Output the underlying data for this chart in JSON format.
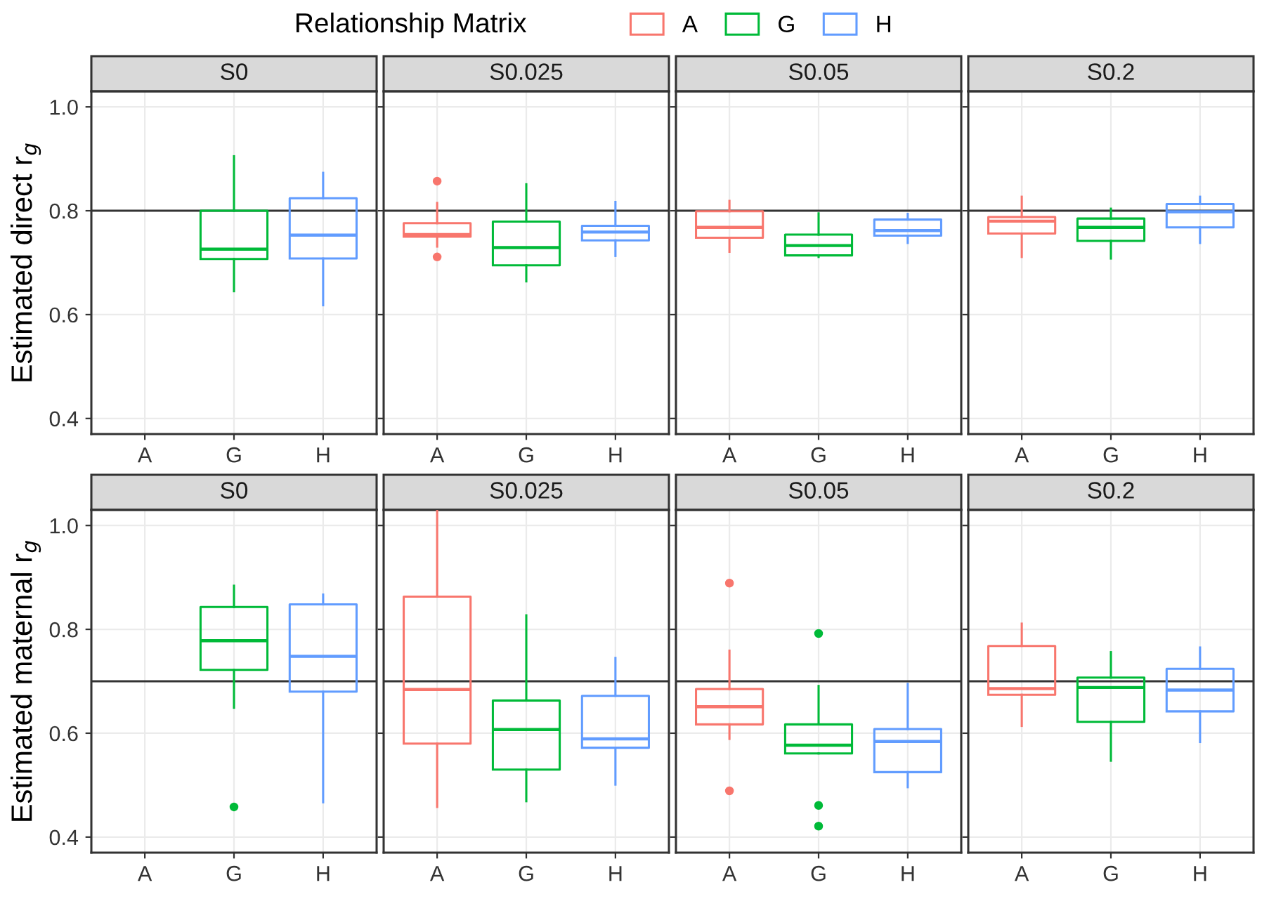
{
  "chart_data": [
    {
      "type": "box",
      "title": "S0",
      "ylabel": "Estimated direct r$_{g}$",
      "legend_title": "Relationship Matrix",
      "legend": "top",
      "categories": [
        "A",
        "G",
        "H"
      ],
      "ylim": [
        0.37,
        1.03
      ],
      "yticks": [
        0.4,
        0.6,
        0.8,
        {
          "value": 1.0,
          "label": "1.0"
        }
      ],
      "grid": true,
      "ref_lines": [
        {
          "axis": "y",
          "value": 0.8,
          "color": "#333333"
        }
      ],
      "series": [
        {
          "name": "A",
          "color": "#f8766d",
          "boxes": [
            null,
            null,
            null
          ]
        },
        {
          "name": "G",
          "color": "#00ba38",
          "boxes": [
            null,
            {
              "low": 0.645,
              "q1": 0.707,
              "median": 0.726,
              "q3": 0.8,
              "high": 0.905
            },
            null
          ]
        },
        {
          "name": "H",
          "color": "#619cff",
          "boxes": [
            null,
            null,
            {
              "low": 0.618,
              "q1": 0.708,
              "median": 0.753,
              "q3": 0.824,
              "high": 0.873
            }
          ]
        }
      ]
    },
    {
      "type": "box",
      "title": "S0.025",
      "categories": [
        "A",
        "G",
        "H"
      ],
      "ylim": [
        0.37,
        1.03
      ],
      "yticks": [
        0.4,
        0.6,
        0.8,
        1.0
      ],
      "tick_labels": "x",
      "grid": true,
      "ref_lines": [
        {
          "axis": "y",
          "value": 0.8,
          "color": "#333333"
        }
      ],
      "series": [
        {
          "color": "#f8766d",
          "boxes": [
            {
              "low": 0.731,
              "q1": 0.75,
              "median": 0.754,
              "q3": 0.776,
              "high": 0.815,
              "outliers": [
                0.857,
                0.711
              ]
            },
            null,
            null
          ]
        },
        {
          "color": "#00ba38",
          "boxes": [
            null,
            {
              "low": 0.664,
              "q1": 0.695,
              "median": 0.729,
              "q3": 0.779,
              "high": 0.851
            },
            null
          ]
        },
        {
          "color": "#619cff",
          "boxes": [
            null,
            null,
            {
              "low": 0.713,
              "q1": 0.743,
              "median": 0.759,
              "q3": 0.771,
              "high": 0.817
            }
          ]
        }
      ]
    },
    {
      "type": "box",
      "title": "S0.05",
      "categories": [
        "A",
        "G",
        "H"
      ],
      "ylim": [
        0.37,
        1.03
      ],
      "yticks": [
        0.4,
        0.6,
        0.8,
        1.0
      ],
      "tick_labels": "x",
      "grid": true,
      "ref_lines": [
        {
          "axis": "y",
          "value": 0.8,
          "color": "#333333"
        }
      ],
      "series": [
        {
          "color": "#f8766d",
          "boxes": [
            {
              "low": 0.721,
              "q1": 0.748,
              "median": 0.768,
              "q3": 0.799,
              "high": 0.819
            },
            null,
            null
          ]
        },
        {
          "color": "#00ba38",
          "boxes": [
            null,
            {
              "low": 0.711,
              "q1": 0.714,
              "median": 0.733,
              "q3": 0.754,
              "high": 0.795
            },
            null
          ]
        },
        {
          "color": "#619cff",
          "boxes": [
            null,
            null,
            {
              "low": 0.738,
              "q1": 0.752,
              "median": 0.762,
              "q3": 0.783,
              "high": 0.794
            }
          ]
        }
      ]
    },
    {
      "type": "box",
      "title": "S0.2",
      "categories": [
        "A",
        "G",
        "H"
      ],
      "ylim": [
        0.37,
        1.03
      ],
      "yticks": [
        0.4,
        0.6,
        0.8,
        1.0
      ],
      "tick_labels": "x",
      "grid": true,
      "ref_lines": [
        {
          "axis": "y",
          "value": 0.8,
          "color": "#333333"
        }
      ],
      "series": [
        {
          "color": "#f8766d",
          "boxes": [
            {
              "low": 0.711,
              "q1": 0.756,
              "median": 0.78,
              "q3": 0.788,
              "high": 0.827
            },
            null,
            null
          ]
        },
        {
          "color": "#00ba38",
          "boxes": [
            null,
            {
              "low": 0.708,
              "q1": 0.742,
              "median": 0.768,
              "q3": 0.785,
              "high": 0.804
            },
            null
          ]
        },
        {
          "color": "#619cff",
          "boxes": [
            null,
            null,
            {
              "low": 0.738,
              "q1": 0.768,
              "median": 0.798,
              "q3": 0.813,
              "high": 0.827
            }
          ]
        }
      ]
    },
    {
      "type": "box",
      "title": "S0",
      "ylabel": "Estimated maternal r$_{g}$",
      "categories": [
        "A",
        "G",
        "H"
      ],
      "ylim": [
        0.37,
        1.03
      ],
      "yticks": [
        0.4,
        0.6,
        0.8,
        {
          "value": 1.0,
          "label": "1.0"
        }
      ],
      "grid": true,
      "ref_lines": [
        {
          "axis": "y",
          "value": 0.7,
          "color": "#333333"
        }
      ],
      "series": [
        {
          "color": "#f8766d",
          "boxes": [
            null,
            null,
            null
          ]
        },
        {
          "color": "#00ba38",
          "boxes": [
            null,
            {
              "low": 0.649,
              "q1": 0.722,
              "median": 0.778,
              "q3": 0.843,
              "high": 0.884,
              "outliers": [
                0.458
              ]
            },
            null
          ]
        },
        {
          "color": "#619cff",
          "boxes": [
            null,
            null,
            {
              "low": 0.467,
              "q1": 0.68,
              "median": 0.748,
              "q3": 0.848,
              "high": 0.867
            }
          ]
        }
      ]
    },
    {
      "type": "box",
      "title": "S0.025",
      "categories": [
        "A",
        "G",
        "H"
      ],
      "ylim": [
        0.37,
        1.03
      ],
      "yticks": [
        0.4,
        0.6,
        0.8,
        1.0
      ],
      "tick_labels": "x",
      "grid": true,
      "ref_lines": [
        {
          "axis": "y",
          "value": 0.7,
          "color": "#333333"
        }
      ],
      "series": [
        {
          "color": "#f8766d",
          "boxes": [
            {
              "low": 0.458,
              "q1": 0.58,
              "median": 0.684,
              "q3": 0.863,
              "high": 1.03
            },
            null,
            null
          ]
        },
        {
          "color": "#00ba38",
          "boxes": [
            null,
            {
              "low": 0.469,
              "q1": 0.53,
              "median": 0.607,
              "q3": 0.663,
              "high": 0.827
            },
            null
          ]
        },
        {
          "color": "#619cff",
          "boxes": [
            null,
            null,
            {
              "low": 0.501,
              "q1": 0.572,
              "median": 0.589,
              "q3": 0.672,
              "high": 0.745
            }
          ]
        }
      ]
    },
    {
      "type": "box",
      "title": "S0.05",
      "categories": [
        "A",
        "G",
        "H"
      ],
      "ylim": [
        0.37,
        1.03
      ],
      "yticks": [
        0.4,
        0.6,
        0.8,
        1.0
      ],
      "tick_labels": "x",
      "grid": true,
      "ref_lines": [
        {
          "axis": "y",
          "value": 0.7,
          "color": "#333333"
        }
      ],
      "series": [
        {
          "color": "#f8766d",
          "boxes": [
            {
              "low": 0.589,
              "q1": 0.617,
              "median": 0.651,
              "q3": 0.685,
              "high": 0.759,
              "outliers": [
                0.889,
                0.489
              ]
            },
            null,
            null
          ]
        },
        {
          "color": "#00ba38",
          "boxes": [
            null,
            {
              "low": 0.561,
              "q1": 0.561,
              "median": 0.577,
              "q3": 0.617,
              "high": 0.691,
              "outliers": [
                0.792,
                0.461,
                0.421
              ]
            },
            null
          ]
        },
        {
          "color": "#619cff",
          "boxes": [
            null,
            null,
            {
              "low": 0.496,
              "q1": 0.525,
              "median": 0.584,
              "q3": 0.608,
              "high": 0.695
            }
          ]
        }
      ]
    },
    {
      "type": "box",
      "title": "S0.2",
      "categories": [
        "A",
        "G",
        "H"
      ],
      "ylim": [
        0.37,
        1.03
      ],
      "yticks": [
        0.4,
        0.6,
        0.8,
        1.0
      ],
      "tick_labels": "x",
      "grid": true,
      "ref_lines": [
        {
          "axis": "y",
          "value": 0.7,
          "color": "#333333"
        }
      ],
      "series": [
        {
          "color": "#f8766d",
          "boxes": [
            {
              "low": 0.614,
              "q1": 0.674,
              "median": 0.686,
              "q3": 0.768,
              "high": 0.811
            },
            null,
            null
          ]
        },
        {
          "color": "#00ba38",
          "boxes": [
            null,
            {
              "low": 0.547,
              "q1": 0.622,
              "median": 0.688,
              "q3": 0.707,
              "high": 0.756
            },
            null
          ]
        },
        {
          "color": "#619cff",
          "boxes": [
            null,
            null,
            {
              "low": 0.583,
              "q1": 0.642,
              "median": 0.683,
              "q3": 0.724,
              "high": 0.765
            }
          ]
        }
      ]
    }
  ]
}
